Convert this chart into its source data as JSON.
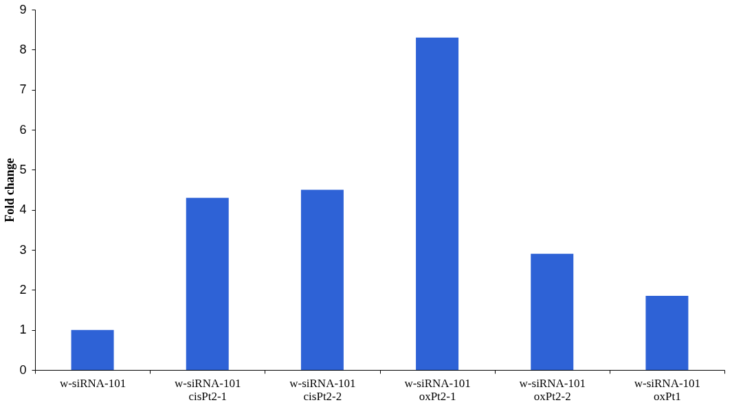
{
  "chart_data": {
    "type": "bar",
    "ylabel": "Fold change",
    "categories": [
      "w-siRNA-101",
      "w-siRNA-101\ncisPt2-1",
      "w-siRNA-101\ncisPt2-2",
      "w-siRNA-101\noxPt2-1",
      "w-siRNA-101\noxPt2-2",
      "w-siRNA-101\noxPt1"
    ],
    "values": [
      1.0,
      4.3,
      4.5,
      8.3,
      2.9,
      1.85
    ],
    "color": "#2e62d6",
    "ylim": [
      0,
      9
    ],
    "yticks": [
      0,
      1,
      2,
      3,
      4,
      5,
      6,
      7,
      8,
      9
    ],
    "grid": false
  }
}
